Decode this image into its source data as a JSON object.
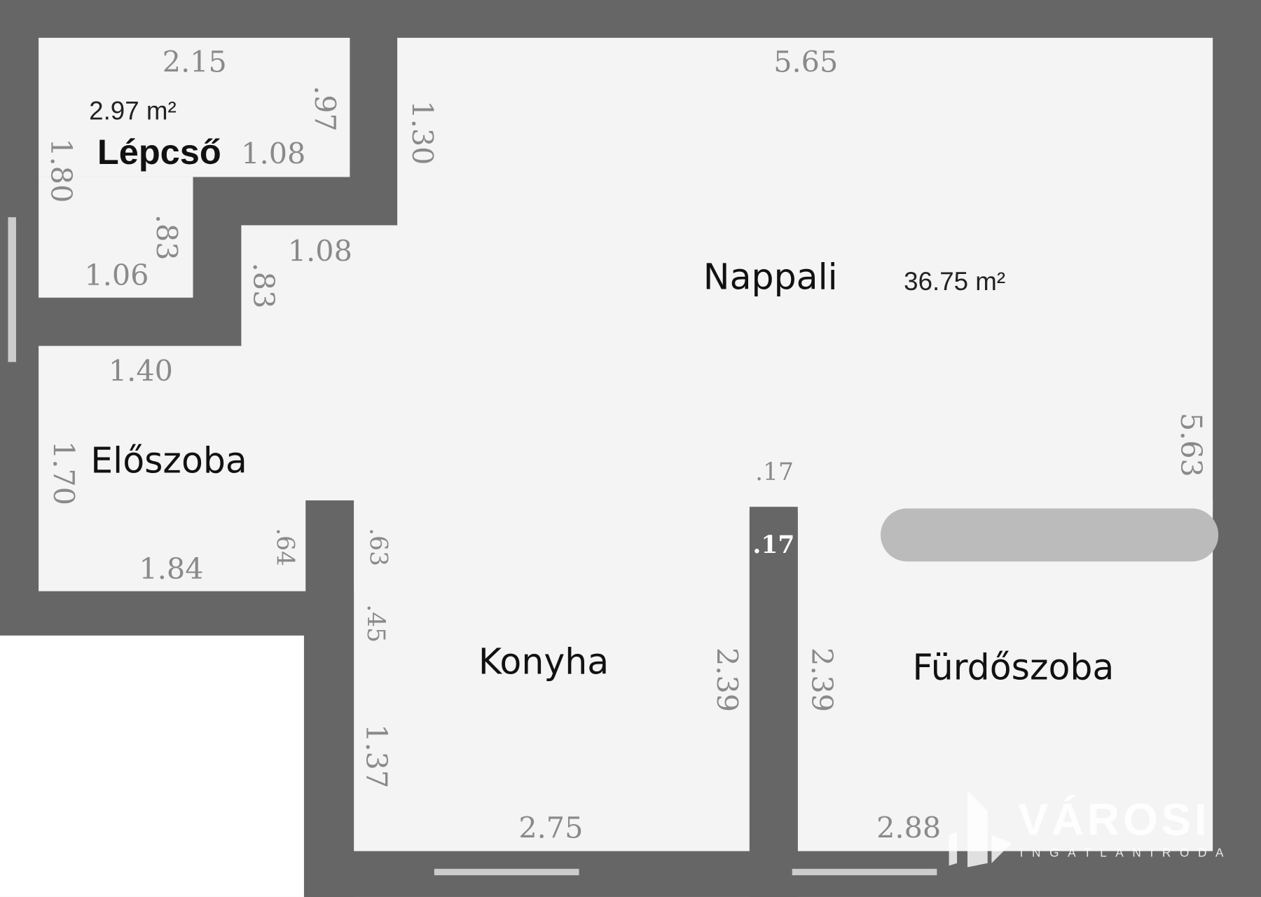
{
  "colors": {
    "wall": "#666666",
    "floor": "#f4f4f4",
    "dimension_text": "#8a8a8a",
    "fixture": "#bbbbbb"
  },
  "rooms": {
    "lepcso": {
      "name": "Lépcső",
      "area": "2.97 m²"
    },
    "nappali": {
      "name": "Nappali",
      "area": "36.75 m²"
    },
    "eloszoba": {
      "name": "Előszoba"
    },
    "konyha": {
      "name": "Konyha"
    },
    "furdoszoba": {
      "name": "Fürdőszoba"
    }
  },
  "dimensions": [
    "2.15",
    ".97",
    "1.80",
    "1.08",
    "1.30",
    ".83",
    "1.06",
    "1.08",
    ".83",
    "5.65",
    "1.40",
    "1.70",
    "5.63",
    ".17",
    ".17",
    ".64",
    ".63",
    ".45",
    "1.37",
    "2.39",
    "2.39",
    "2.75",
    "2.88",
    "1.84"
  ],
  "logo": {
    "brand": "VÁROSI",
    "subtitle": "INGATLANIRODA"
  }
}
